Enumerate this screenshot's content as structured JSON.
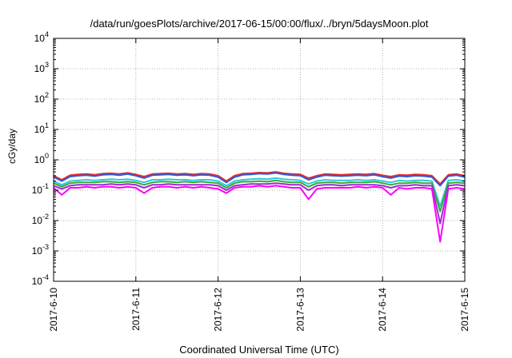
{
  "chart_data": {
    "type": "line",
    "title": "/data/run/goesPlots/archive/2017-06-15/00:00/flux/../bryn/5daysMoon.plot",
    "xlabel": "Coordinated Universal Time (UTC)",
    "ylabel": "cGy/day",
    "yscale": "log",
    "ylim": [
      0.0001,
      10000
    ],
    "xlim": [
      "2017-06-10",
      "2017-06-15"
    ],
    "grid": true,
    "y_ticks": [
      {
        "base": "10",
        "exp": "-4"
      },
      {
        "base": "10",
        "exp": "-3"
      },
      {
        "base": "10",
        "exp": "-2"
      },
      {
        "base": "10",
        "exp": "-1"
      },
      {
        "base": "10",
        "exp": "0"
      },
      {
        "base": "10",
        "exp": "1"
      },
      {
        "base": "10",
        "exp": "2"
      },
      {
        "base": "10",
        "exp": "3"
      },
      {
        "base": "10",
        "exp": "4"
      }
    ],
    "x_ticks": [
      "2017-6-10",
      "2017-6-11",
      "2017-6-12",
      "2017-6-13",
      "2017-6-14",
      "2017-6-15"
    ],
    "series": [
      {
        "color": "#e8282b",
        "x": [
          0,
          0.1,
          0.2,
          0.3,
          0.4,
          0.5,
          0.6,
          0.7,
          0.8,
          0.9,
          1.0,
          1.1,
          1.2,
          1.3,
          1.4,
          1.5,
          1.6,
          1.7,
          1.8,
          1.9,
          2.0,
          2.1,
          2.2,
          2.3,
          2.4,
          2.5,
          2.6,
          2.7,
          2.8,
          2.9,
          3.0,
          3.1,
          3.2,
          3.3,
          3.4,
          3.5,
          3.6,
          3.7,
          3.8,
          3.9,
          4.0,
          4.1,
          4.2,
          4.3,
          4.4,
          4.5,
          4.6,
          4.7,
          4.8,
          4.9,
          5.0
        ],
        "y": [
          0.3,
          0.22,
          0.31,
          0.33,
          0.34,
          0.32,
          0.35,
          0.36,
          0.34,
          0.37,
          0.33,
          0.28,
          0.34,
          0.35,
          0.36,
          0.34,
          0.35,
          0.33,
          0.35,
          0.34,
          0.3,
          0.2,
          0.3,
          0.35,
          0.36,
          0.38,
          0.37,
          0.4,
          0.36,
          0.34,
          0.33,
          0.25,
          0.3,
          0.34,
          0.33,
          0.32,
          0.33,
          0.34,
          0.33,
          0.35,
          0.31,
          0.28,
          0.32,
          0.31,
          0.33,
          0.32,
          0.3,
          0.16,
          0.32,
          0.34,
          0.3
        ]
      },
      {
        "color": "#2f5bd6",
        "x": [
          0,
          0.1,
          0.2,
          0.3,
          0.4,
          0.5,
          0.6,
          0.7,
          0.8,
          0.9,
          1.0,
          1.1,
          1.2,
          1.3,
          1.4,
          1.5,
          1.6,
          1.7,
          1.8,
          1.9,
          2.0,
          2.1,
          2.2,
          2.3,
          2.4,
          2.5,
          2.6,
          2.7,
          2.8,
          2.9,
          3.0,
          3.1,
          3.2,
          3.3,
          3.4,
          3.5,
          3.6,
          3.7,
          3.8,
          3.9,
          4.0,
          4.1,
          4.2,
          4.3,
          4.4,
          4.5,
          4.6,
          4.7,
          4.8,
          4.9,
          5.0
        ],
        "y": [
          0.27,
          0.2,
          0.28,
          0.3,
          0.31,
          0.29,
          0.32,
          0.33,
          0.31,
          0.34,
          0.3,
          0.25,
          0.31,
          0.32,
          0.33,
          0.31,
          0.32,
          0.3,
          0.32,
          0.31,
          0.27,
          0.18,
          0.27,
          0.32,
          0.33,
          0.35,
          0.34,
          0.37,
          0.33,
          0.31,
          0.3,
          0.22,
          0.27,
          0.31,
          0.3,
          0.29,
          0.3,
          0.31,
          0.3,
          0.32,
          0.28,
          0.25,
          0.29,
          0.28,
          0.3,
          0.29,
          0.27,
          0.14,
          0.29,
          0.31,
          0.27
        ]
      },
      {
        "color": "#2ec9d6",
        "x": [
          0,
          0.1,
          0.2,
          0.3,
          0.4,
          0.5,
          0.6,
          0.7,
          0.8,
          0.9,
          1.0,
          1.1,
          1.2,
          1.3,
          1.4,
          1.5,
          1.6,
          1.7,
          1.8,
          1.9,
          2.0,
          2.1,
          2.2,
          2.3,
          2.4,
          2.5,
          2.6,
          2.7,
          2.8,
          2.9,
          3.0,
          3.1,
          3.2,
          3.3,
          3.4,
          3.5,
          3.6,
          3.7,
          3.8,
          3.9,
          4.0,
          4.1,
          4.2,
          4.3,
          4.4,
          4.5,
          4.6,
          4.7,
          4.8,
          4.9,
          5.0
        ],
        "y": [
          0.2,
          0.15,
          0.2,
          0.21,
          0.22,
          0.21,
          0.22,
          0.23,
          0.22,
          0.23,
          0.21,
          0.18,
          0.22,
          0.22,
          0.23,
          0.22,
          0.22,
          0.21,
          0.22,
          0.22,
          0.2,
          0.14,
          0.2,
          0.22,
          0.23,
          0.24,
          0.23,
          0.25,
          0.23,
          0.22,
          0.21,
          0.16,
          0.2,
          0.22,
          0.21,
          0.21,
          0.21,
          0.22,
          0.21,
          0.22,
          0.2,
          0.18,
          0.21,
          0.2,
          0.21,
          0.21,
          0.2,
          0.03,
          0.21,
          0.22,
          0.2
        ]
      },
      {
        "color": "#38a838",
        "x": [
          0,
          0.1,
          0.2,
          0.3,
          0.4,
          0.5,
          0.6,
          0.7,
          0.8,
          0.9,
          1.0,
          1.1,
          1.2,
          1.3,
          1.4,
          1.5,
          1.6,
          1.7,
          1.8,
          1.9,
          2.0,
          2.1,
          2.2,
          2.3,
          2.4,
          2.5,
          2.6,
          2.7,
          2.8,
          2.9,
          3.0,
          3.1,
          3.2,
          3.3,
          3.4,
          3.5,
          3.6,
          3.7,
          3.8,
          3.9,
          4.0,
          4.1,
          4.2,
          4.3,
          4.4,
          4.5,
          4.6,
          4.7,
          4.8,
          4.9,
          5.0
        ],
        "y": [
          0.17,
          0.13,
          0.17,
          0.18,
          0.18,
          0.18,
          0.19,
          0.19,
          0.18,
          0.19,
          0.18,
          0.15,
          0.18,
          0.19,
          0.19,
          0.18,
          0.19,
          0.18,
          0.19,
          0.18,
          0.17,
          0.12,
          0.17,
          0.19,
          0.19,
          0.2,
          0.19,
          0.21,
          0.19,
          0.18,
          0.18,
          0.13,
          0.17,
          0.18,
          0.18,
          0.17,
          0.18,
          0.18,
          0.18,
          0.19,
          0.17,
          0.15,
          0.17,
          0.17,
          0.18,
          0.17,
          0.17,
          0.02,
          0.17,
          0.18,
          0.17
        ]
      },
      {
        "color": "#9b2bd6",
        "x": [
          0,
          0.1,
          0.2,
          0.3,
          0.4,
          0.5,
          0.6,
          0.7,
          0.8,
          0.9,
          1.0,
          1.1,
          1.2,
          1.3,
          1.4,
          1.5,
          1.6,
          1.7,
          1.8,
          1.9,
          2.0,
          2.1,
          2.2,
          2.3,
          2.4,
          2.5,
          2.6,
          2.7,
          2.8,
          2.9,
          3.0,
          3.1,
          3.2,
          3.3,
          3.4,
          3.5,
          3.6,
          3.7,
          3.8,
          3.9,
          4.0,
          4.1,
          4.2,
          4.3,
          4.4,
          4.5,
          4.6,
          4.7,
          4.8,
          4.9,
          5.0
        ],
        "y": [
          0.14,
          0.11,
          0.14,
          0.15,
          0.15,
          0.15,
          0.15,
          0.16,
          0.15,
          0.16,
          0.15,
          0.12,
          0.15,
          0.15,
          0.16,
          0.15,
          0.15,
          0.15,
          0.15,
          0.15,
          0.14,
          0.1,
          0.14,
          0.15,
          0.16,
          0.16,
          0.16,
          0.17,
          0.16,
          0.15,
          0.15,
          0.1,
          0.14,
          0.15,
          0.15,
          0.14,
          0.15,
          0.15,
          0.15,
          0.15,
          0.14,
          0.12,
          0.14,
          0.14,
          0.15,
          0.14,
          0.14,
          0.008,
          0.14,
          0.15,
          0.14
        ]
      },
      {
        "color": "#ff00ff",
        "x": [
          0,
          0.1,
          0.2,
          0.3,
          0.4,
          0.5,
          0.6,
          0.7,
          0.8,
          0.9,
          1.0,
          1.1,
          1.2,
          1.3,
          1.4,
          1.5,
          1.6,
          1.7,
          1.8,
          1.9,
          2.0,
          2.1,
          2.2,
          2.3,
          2.4,
          2.5,
          2.6,
          2.7,
          2.8,
          2.9,
          3.0,
          3.1,
          3.2,
          3.3,
          3.4,
          3.5,
          3.6,
          3.7,
          3.8,
          3.9,
          4.0,
          4.1,
          4.2,
          4.3,
          4.4,
          4.5,
          4.6,
          4.7,
          4.8,
          4.9,
          5.0
        ],
        "y": [
          0.12,
          0.07,
          0.12,
          0.12,
          0.13,
          0.12,
          0.13,
          0.13,
          0.12,
          0.13,
          0.12,
          0.08,
          0.12,
          0.13,
          0.13,
          0.12,
          0.13,
          0.12,
          0.13,
          0.12,
          0.11,
          0.08,
          0.12,
          0.13,
          0.13,
          0.14,
          0.13,
          0.14,
          0.13,
          0.12,
          0.12,
          0.05,
          0.11,
          0.12,
          0.12,
          0.12,
          0.12,
          0.13,
          0.12,
          0.13,
          0.12,
          0.07,
          0.12,
          0.11,
          0.12,
          0.12,
          0.11,
          0.002,
          0.11,
          0.12,
          0.11
        ]
      }
    ]
  }
}
